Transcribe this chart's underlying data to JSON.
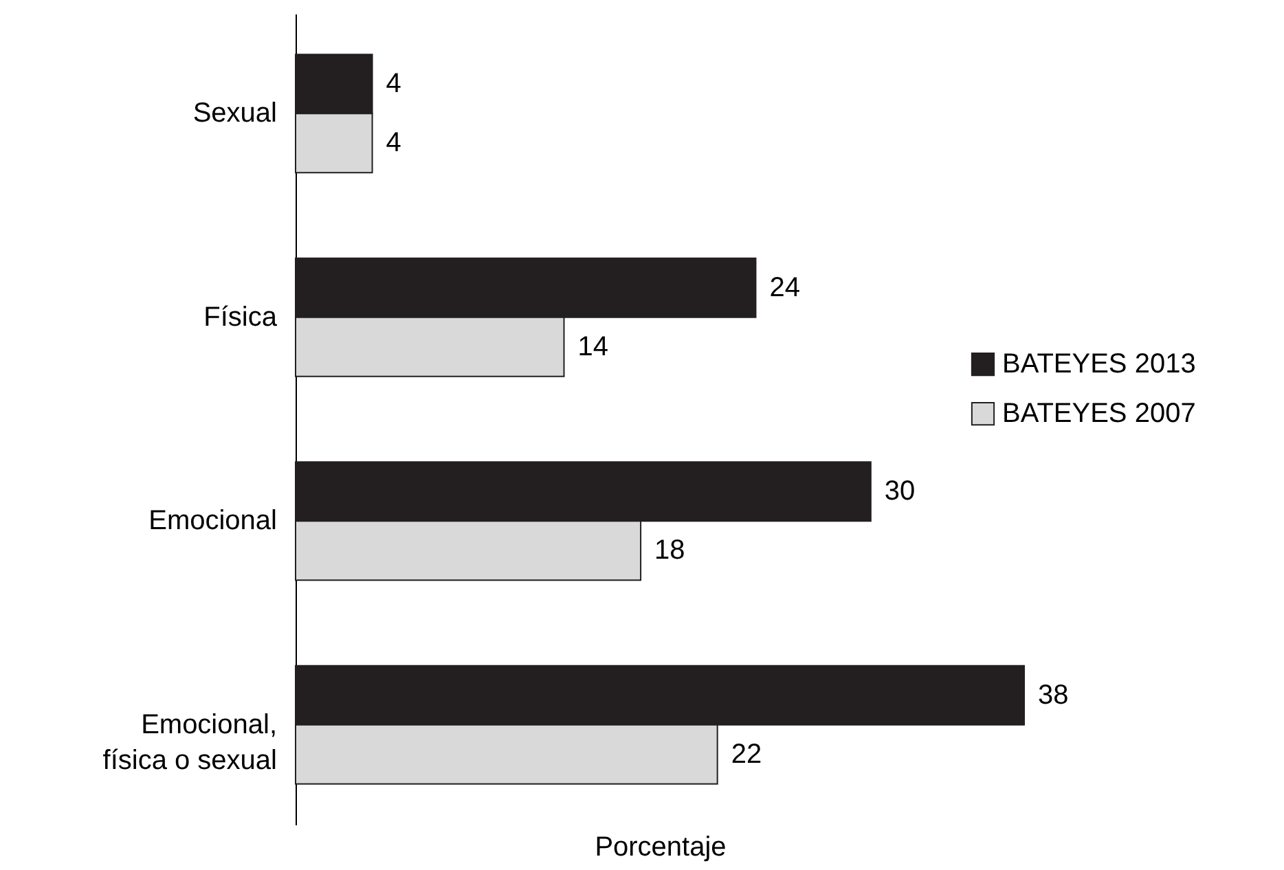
{
  "chart_data": {
    "type": "bar",
    "orientation": "horizontal",
    "xlabel": "Porcentaje",
    "categories": [
      "Sexual",
      "Física",
      "Emocional",
      "Emocional,\nfísica o sexual"
    ],
    "series": [
      {
        "name": "BATEYES 2013",
        "color": "#231f20",
        "values": [
          4,
          24,
          30,
          38
        ]
      },
      {
        "name": "BATEYES 2007",
        "color": "#d9d9d9",
        "values": [
          4,
          14,
          18,
          22
        ]
      }
    ],
    "data_labels": true,
    "legend": "right",
    "tick_labels": "y",
    "grid": false
  }
}
